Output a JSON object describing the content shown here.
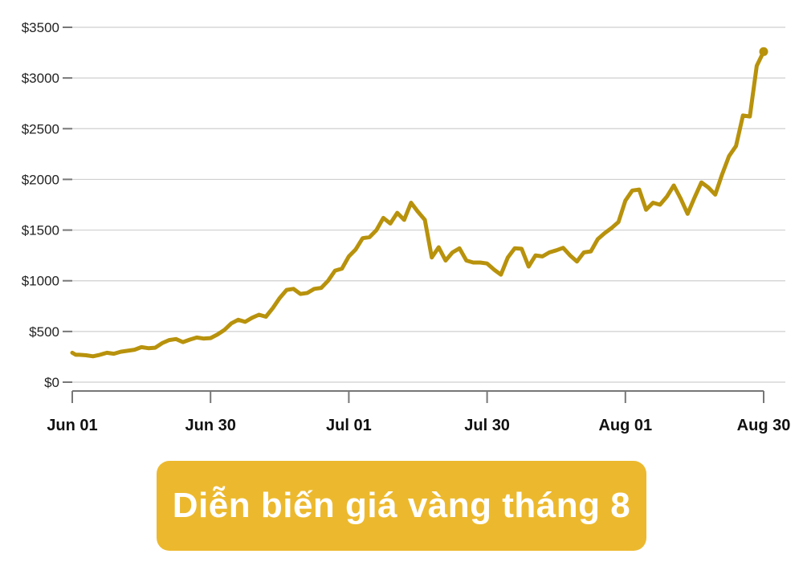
{
  "banner": {
    "title": "Diễn biến giá vàng tháng 8"
  },
  "chart_data": {
    "type": "line",
    "title": "Diễn biến giá vàng tháng 8",
    "xlabel": "",
    "ylabel": "",
    "ylim": [
      0,
      3500
    ],
    "y_ticks": [
      0,
      500,
      1000,
      1500,
      2000,
      2500,
      3000,
      3500
    ],
    "y_tick_labels": [
      "$0",
      "$500",
      "$1000",
      "$1500",
      "$2000",
      "$2500",
      "$3000",
      "$3500"
    ],
    "x_tick_labels": [
      "Jun 01",
      "Jun 30",
      "Jul 01",
      "Jul 30",
      "Aug 01",
      "Aug 30"
    ],
    "x_tick_positions": [
      0,
      20,
      40,
      60,
      80,
      100
    ],
    "xlim": [
      0,
      100
    ],
    "grid": true,
    "line_color": "#b8920c",
    "series": [
      {
        "values": [
          {
            "x": 0,
            "y": 290
          },
          {
            "x": 0.5,
            "y": 270
          },
          {
            "x": 1,
            "y": 270
          },
          {
            "x": 2,
            "y": 265
          },
          {
            "x": 3,
            "y": 255
          },
          {
            "x": 4,
            "y": 270
          },
          {
            "x": 5,
            "y": 290
          },
          {
            "x": 6,
            "y": 280
          },
          {
            "x": 7,
            "y": 300
          },
          {
            "x": 8,
            "y": 310
          },
          {
            "x": 9,
            "y": 320
          },
          {
            "x": 10,
            "y": 345
          },
          {
            "x": 11,
            "y": 335
          },
          {
            "x": 12,
            "y": 340
          },
          {
            "x": 13,
            "y": 385
          },
          {
            "x": 14,
            "y": 415
          },
          {
            "x": 15,
            "y": 425
          },
          {
            "x": 16,
            "y": 395
          },
          {
            "x": 17,
            "y": 420
          },
          {
            "x": 18,
            "y": 440
          },
          {
            "x": 19,
            "y": 430
          },
          {
            "x": 20,
            "y": 435
          },
          {
            "x": 21,
            "y": 470
          },
          {
            "x": 22,
            "y": 515
          },
          {
            "x": 23,
            "y": 580
          },
          {
            "x": 24,
            "y": 615
          },
          {
            "x": 25,
            "y": 595
          },
          {
            "x": 26,
            "y": 635
          },
          {
            "x": 27,
            "y": 665
          },
          {
            "x": 28,
            "y": 645
          },
          {
            "x": 29,
            "y": 730
          },
          {
            "x": 30,
            "y": 830
          },
          {
            "x": 31,
            "y": 910
          },
          {
            "x": 32,
            "y": 920
          },
          {
            "x": 33,
            "y": 870
          },
          {
            "x": 34,
            "y": 880
          },
          {
            "x": 35,
            "y": 920
          },
          {
            "x": 36,
            "y": 930
          },
          {
            "x": 37,
            "y": 1000
          },
          {
            "x": 38,
            "y": 1100
          },
          {
            "x": 39,
            "y": 1120
          },
          {
            "x": 40,
            "y": 1240
          },
          {
            "x": 41,
            "y": 1310
          },
          {
            "x": 42,
            "y": 1420
          },
          {
            "x": 43,
            "y": 1430
          },
          {
            "x": 44,
            "y": 1500
          },
          {
            "x": 45,
            "y": 1620
          },
          {
            "x": 46,
            "y": 1565
          },
          {
            "x": 47,
            "y": 1670
          },
          {
            "x": 48,
            "y": 1600
          },
          {
            "x": 49,
            "y": 1770
          },
          {
            "x": 50,
            "y": 1680
          },
          {
            "x": 51,
            "y": 1600
          },
          {
            "x": 52,
            "y": 1230
          },
          {
            "x": 53,
            "y": 1330
          },
          {
            "x": 54,
            "y": 1200
          },
          {
            "x": 55,
            "y": 1280
          },
          {
            "x": 56,
            "y": 1320
          },
          {
            "x": 57,
            "y": 1200
          },
          {
            "x": 58,
            "y": 1180
          },
          {
            "x": 59,
            "y": 1180
          },
          {
            "x": 60,
            "y": 1170
          },
          {
            "x": 61,
            "y": 1110
          },
          {
            "x": 62,
            "y": 1060
          },
          {
            "x": 63,
            "y": 1230
          },
          {
            "x": 64,
            "y": 1320
          },
          {
            "x": 65,
            "y": 1315
          },
          {
            "x": 66,
            "y": 1140
          },
          {
            "x": 67,
            "y": 1250
          },
          {
            "x": 68,
            "y": 1240
          },
          {
            "x": 69,
            "y": 1280
          },
          {
            "x": 70,
            "y": 1300
          },
          {
            "x": 71,
            "y": 1325
          },
          {
            "x": 72,
            "y": 1250
          },
          {
            "x": 73,
            "y": 1190
          },
          {
            "x": 74,
            "y": 1280
          },
          {
            "x": 75,
            "y": 1290
          },
          {
            "x": 76,
            "y": 1410
          },
          {
            "x": 77,
            "y": 1470
          },
          {
            "x": 78,
            "y": 1520
          },
          {
            "x": 79,
            "y": 1580
          },
          {
            "x": 80,
            "y": 1790
          },
          {
            "x": 81,
            "y": 1890
          },
          {
            "x": 82,
            "y": 1900
          },
          {
            "x": 83,
            "y": 1700
          },
          {
            "x": 84,
            "y": 1770
          },
          {
            "x": 85,
            "y": 1750
          },
          {
            "x": 86,
            "y": 1830
          },
          {
            "x": 87,
            "y": 1940
          },
          {
            "x": 88,
            "y": 1810
          },
          {
            "x": 89,
            "y": 1660
          },
          {
            "x": 90,
            "y": 1820
          },
          {
            "x": 91,
            "y": 1970
          },
          {
            "x": 92,
            "y": 1920
          },
          {
            "x": 93,
            "y": 1850
          },
          {
            "x": 94,
            "y": 2050
          },
          {
            "x": 95,
            "y": 2230
          },
          {
            "x": 96,
            "y": 2330
          },
          {
            "x": 97,
            "y": 2630
          },
          {
            "x": 98,
            "y": 2620
          },
          {
            "x": 99,
            "y": 3120
          },
          {
            "x": 100,
            "y": 3260
          }
        ]
      }
    ],
    "end_marker": {
      "x": 100,
      "y": 3260
    }
  }
}
